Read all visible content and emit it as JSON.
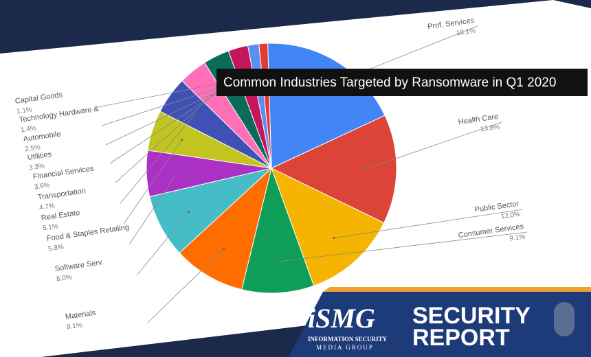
{
  "chart_data": {
    "type": "pie",
    "title": "Common Industries Targeted by Ransomware in Q1 2020",
    "categories": [
      "Prof. Services",
      "Health Care",
      "Public Sector",
      "Consumer Services",
      "Materials",
      "Software Serv.",
      "Food & Staples Retailing",
      "Real Estate",
      "Transportation",
      "Financial Services",
      "Utilities",
      "Automobile",
      "Technology Hardware &",
      "Capital Goods"
    ],
    "values": [
      18.1,
      13.8,
      12.0,
      9.1,
      9.1,
      8.0,
      5.8,
      5.1,
      4.7,
      3.6,
      3.3,
      2.5,
      1.4,
      1.1
    ],
    "value_labels": [
      "18.1%",
      "13.8%",
      "12.0%",
      "9.1%",
      "9.1%",
      "8.0%",
      "5.8%",
      "5.1%",
      "4.7%",
      "3.6%",
      "3.3%",
      "2.5%",
      "1.4%",
      "1.1%"
    ],
    "colors": [
      "#4285f4",
      "#db4437",
      "#f4b400",
      "#0f9d58",
      "#ff6d00",
      "#46bdc6",
      "#ab30c4",
      "#c2c51f",
      "#3f51b5",
      "#ff6fb7",
      "#0b6b5b",
      "#c2185b",
      "#5c8ff2",
      "#e53935"
    ]
  },
  "branding": {
    "logo": "iSMG",
    "logo_line1": "INFORMATION SECURITY",
    "logo_line2": "MEDIA GROUP",
    "report_line1": "SECURITY",
    "report_line2": "REPORT"
  }
}
